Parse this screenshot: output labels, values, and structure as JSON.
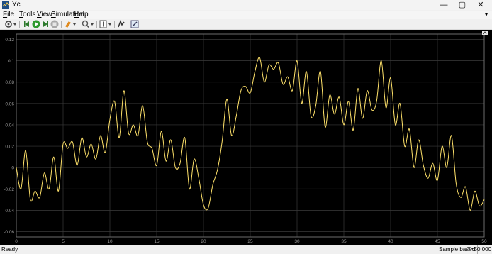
{
  "window": {
    "title": "Yc",
    "minimize_glyph": "—",
    "maximize_glyph": "▢",
    "close_glyph": "✕",
    "icon": "simulink-scope-icon"
  },
  "menu": {
    "items": [
      {
        "underline": "F",
        "rest": "ile"
      },
      {
        "underline": "T",
        "rest": "ools"
      },
      {
        "underline": "V",
        "rest": "iew"
      },
      {
        "underline": "S",
        "rest": "imulation"
      },
      {
        "underline": "H",
        "rest": "elp"
      }
    ],
    "overflow_glyph": "▾"
  },
  "toolbar": {
    "icons": [
      "settings-gear-icon",
      "step-back-icon",
      "run-icon",
      "step-forward-icon",
      "stop-icon",
      "highlight-icon",
      "zoom-icon",
      "scale-axes-icon",
      "signal-selector-icon",
      "edit-style-icon"
    ]
  },
  "status": {
    "state": "Ready",
    "mode": "Sample based",
    "time": "T=50.000"
  },
  "chart_data": {
    "type": "line",
    "title": "",
    "xlabel": "",
    "ylabel": "",
    "xlim": [
      0,
      50
    ],
    "ylim": [
      -0.065,
      0.125
    ],
    "xticks": [
      "0",
      "5",
      "10",
      "15",
      "20",
      "25",
      "30",
      "35",
      "40",
      "45",
      "50"
    ],
    "yticks": [
      "0.12",
      "0.1",
      "0.08",
      "0.06",
      "0.04",
      "0.02",
      "0",
      "-0.02",
      "-0.04",
      "-0.06"
    ],
    "ytick_values": [
      0.12,
      0.1,
      0.08,
      0.06,
      0.04,
      0.02,
      0,
      -0.02,
      -0.04,
      -0.06
    ],
    "grid": true,
    "background": "#000000",
    "grid_color": "#3a3a3a",
    "line_color": "#ffe26a",
    "series": [
      {
        "x": [
          0,
          0.5,
          1,
          1.5,
          2,
          2.5,
          3,
          3.5,
          4,
          4.5,
          5,
          5.5,
          6,
          6.5,
          7,
          7.5,
          8,
          8.5,
          9,
          9.5,
          10,
          10.5,
          11,
          11.5,
          12,
          12.5,
          13,
          13.5,
          14,
          14.5,
          15,
          15.5,
          16,
          16.5,
          17,
          17.5,
          18,
          18.5,
          19,
          19.5,
          20,
          20.5,
          21,
          21.5,
          22,
          22.5,
          23,
          23.5,
          24,
          24.5,
          25,
          25.5,
          26,
          26.5,
          27,
          27.5,
          28,
          28.5,
          29,
          29.5,
          30,
          30.5,
          31,
          31.5,
          32,
          32.5,
          33,
          33.5,
          34,
          34.5,
          35,
          35.5,
          36,
          36.5,
          37,
          37.5,
          38,
          38.5,
          39,
          39.5,
          40,
          40.5,
          41,
          41.5,
          42,
          42.5,
          43,
          43.5,
          44,
          44.5,
          45,
          45.5,
          46,
          46.5,
          47,
          47.5,
          48,
          48.5,
          49,
          49.5,
          50
        ],
        "y": [
          0.0,
          -0.02,
          0.016,
          -0.03,
          -0.022,
          -0.028,
          -0.005,
          -0.02,
          0.01,
          -0.022,
          0.022,
          0.018,
          0.024,
          0.002,
          0.028,
          0.01,
          0.022,
          0.008,
          0.03,
          0.014,
          0.045,
          0.062,
          0.028,
          0.072,
          0.032,
          0.04,
          0.03,
          0.058,
          0.024,
          0.018,
          0.002,
          0.034,
          0.006,
          0.026,
          0.0,
          0.004,
          0.028,
          -0.02,
          0.008,
          -0.01,
          -0.035,
          -0.038,
          -0.016,
          -0.002,
          0.025,
          0.064,
          0.03,
          0.048,
          0.072,
          0.076,
          0.07,
          0.09,
          0.103,
          0.08,
          0.096,
          0.092,
          0.098,
          0.078,
          0.085,
          0.072,
          0.1,
          0.06,
          0.09,
          0.048,
          0.058,
          0.09,
          0.038,
          0.068,
          0.05,
          0.066,
          0.04,
          0.062,
          0.035,
          0.074,
          0.046,
          0.072,
          0.054,
          0.062,
          0.1,
          0.056,
          0.084,
          0.04,
          0.06,
          0.02,
          0.036,
          0.0,
          0.026,
          0.002,
          -0.01,
          0.004,
          -0.012,
          0.02,
          0.0,
          0.03,
          -0.015,
          -0.028,
          -0.018,
          -0.04,
          -0.022,
          -0.036,
          -0.03
        ]
      }
    ]
  }
}
